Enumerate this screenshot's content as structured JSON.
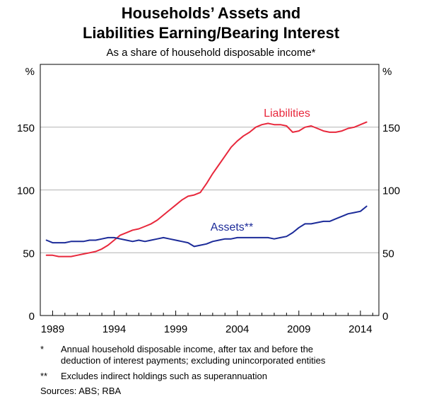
{
  "chart_data": {
    "type": "line",
    "title_line1": "Households’ Assets and",
    "title_line2": "Liabilities Earning/Bearing Interest",
    "subtitle": "As a share of household disposable income*",
    "ylabel_left": "%",
    "ylabel_right": "%",
    "ylim": [
      0,
      200
    ],
    "yticks": [
      0,
      50,
      100,
      150
    ],
    "xlim": [
      1988,
      2015.5
    ],
    "xticks": [
      1989,
      1994,
      1999,
      2004,
      2009,
      2014
    ],
    "grid": true,
    "series": [
      {
        "name": "Liabilities",
        "color": "#e8283c",
        "x": [
          1988.5,
          1989,
          1989.5,
          1990,
          1990.5,
          1991,
          1991.5,
          1992,
          1992.5,
          1993,
          1993.5,
          1994,
          1994.5,
          1995,
          1995.5,
          1996,
          1996.5,
          1997,
          1997.5,
          1998,
          1998.5,
          1999,
          1999.5,
          2000,
          2000.5,
          2001,
          2001.5,
          2002,
          2002.5,
          2003,
          2003.5,
          2004,
          2004.5,
          2005,
          2005.5,
          2006,
          2006.5,
          2007,
          2007.5,
          2008,
          2008.5,
          2009,
          2009.5,
          2010,
          2010.5,
          2011,
          2011.5,
          2012,
          2012.5,
          2013,
          2013.5,
          2014,
          2014.5
        ],
        "values": [
          48,
          48,
          47,
          47,
          47,
          48,
          49,
          50,
          51,
          53,
          56,
          60,
          64,
          66,
          68,
          69,
          71,
          73,
          76,
          80,
          84,
          88,
          92,
          95,
          96,
          98,
          105,
          113,
          120,
          127,
          134,
          139,
          143,
          146,
          150,
          152,
          153,
          152,
          152,
          151,
          146,
          147,
          150,
          151,
          149,
          147,
          146,
          146,
          147,
          149,
          150,
          152,
          154
        ]
      },
      {
        "name": "Assets**",
        "color": "#1c2b99",
        "x": [
          1988.5,
          1989,
          1989.5,
          1990,
          1990.5,
          1991,
          1991.5,
          1992,
          1992.5,
          1993,
          1993.5,
          1994,
          1994.5,
          1995,
          1995.5,
          1996,
          1996.5,
          1997,
          1997.5,
          1998,
          1998.5,
          1999,
          1999.5,
          2000,
          2000.5,
          2001,
          2001.5,
          2002,
          2002.5,
          2003,
          2003.5,
          2004,
          2004.5,
          2005,
          2005.5,
          2006,
          2006.5,
          2007,
          2007.5,
          2008,
          2008.5,
          2009,
          2009.5,
          2010,
          2010.5,
          2011,
          2011.5,
          2012,
          2012.5,
          2013,
          2013.5,
          2014,
          2014.5
        ],
        "values": [
          60,
          58,
          58,
          58,
          59,
          59,
          59,
          60,
          60,
          61,
          62,
          62,
          61,
          60,
          59,
          60,
          59,
          60,
          61,
          62,
          61,
          60,
          59,
          58,
          55,
          56,
          57,
          59,
          60,
          61,
          61,
          62,
          62,
          62,
          62,
          62,
          62,
          61,
          62,
          63,
          66,
          70,
          73,
          73,
          74,
          75,
          75,
          77,
          79,
          81,
          82,
          83,
          87
        ]
      }
    ],
    "annotations": {
      "liabilities_label": "Liabilities",
      "assets_label": "Assets**"
    }
  },
  "notes": {
    "n1_mark": "*",
    "n1_line1": "Annual household disposable income, after tax and before the",
    "n1_line2": "deduction of interest payments; excluding unincorporated entities",
    "n2_mark": "**",
    "n2_text": "Excludes indirect holdings such as superannuation",
    "sources": "Sources:   ABS; RBA"
  }
}
